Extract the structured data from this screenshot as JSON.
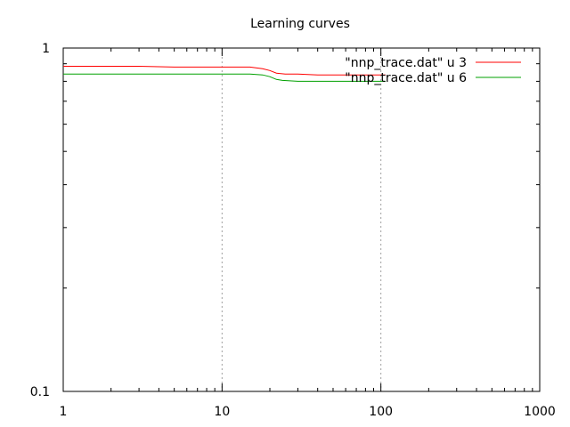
{
  "chart_data": {
    "type": "line",
    "title": "Learning curves",
    "xscale": "log",
    "yscale": "log",
    "xlim": [
      1,
      1000
    ],
    "ylim": [
      0.1,
      1
    ],
    "x_tick_labels": [
      "1",
      "10",
      "100",
      "1000"
    ],
    "y_tick_labels": [
      "0.1",
      "1"
    ],
    "x_grid_values": [
      10,
      100
    ],
    "grid": "vertical dotted at labeled x ticks",
    "legend_placement": "top-right",
    "series": [
      {
        "name": "\"nnp_trace.dat\" u 3",
        "color": "#ff0000",
        "points": [
          [
            1,
            0.885
          ],
          [
            3,
            0.885
          ],
          [
            5,
            0.88
          ],
          [
            10,
            0.88
          ],
          [
            15,
            0.88
          ],
          [
            18,
            0.87
          ],
          [
            20,
            0.86
          ],
          [
            22,
            0.845
          ],
          [
            25,
            0.84
          ],
          [
            30,
            0.84
          ],
          [
            40,
            0.835
          ],
          [
            50,
            0.835
          ],
          [
            70,
            0.835
          ],
          [
            100,
            0.835
          ],
          [
            107,
            0.835
          ]
        ]
      },
      {
        "name": "\"nnp_trace.dat\" u 6",
        "color": "#00a000",
        "points": [
          [
            1,
            0.84
          ],
          [
            5,
            0.84
          ],
          [
            10,
            0.84
          ],
          [
            15,
            0.84
          ],
          [
            18,
            0.835
          ],
          [
            20,
            0.825
          ],
          [
            22,
            0.81
          ],
          [
            24,
            0.805
          ],
          [
            30,
            0.8
          ],
          [
            50,
            0.8
          ],
          [
            70,
            0.8
          ],
          [
            100,
            0.8
          ],
          [
            107,
            0.8
          ]
        ]
      }
    ]
  }
}
